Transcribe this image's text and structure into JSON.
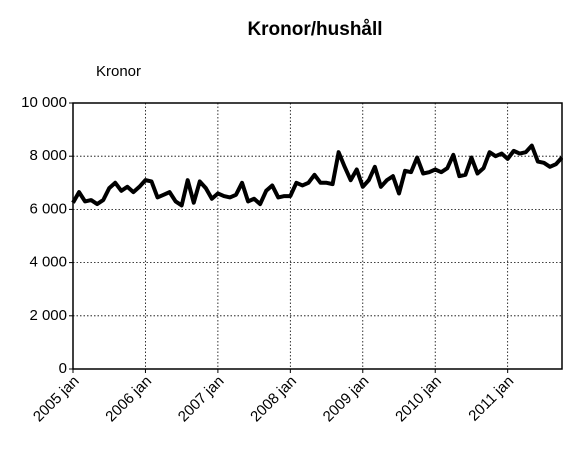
{
  "chart_data": {
    "type": "line",
    "title": "Kronor/hushåll",
    "y_label": "Kronor",
    "categories": [
      "2005 jan",
      null,
      null,
      null,
      null,
      null,
      null,
      null,
      null,
      null,
      null,
      null,
      "2006 jan",
      null,
      null,
      null,
      null,
      null,
      null,
      null,
      null,
      null,
      null,
      null,
      "2007 jan",
      null,
      null,
      null,
      null,
      null,
      null,
      null,
      null,
      null,
      null,
      null,
      "2008 jan",
      null,
      null,
      null,
      null,
      null,
      null,
      null,
      null,
      null,
      null,
      null,
      "2009 jan",
      null,
      null,
      null,
      null,
      null,
      null,
      null,
      null,
      null,
      null,
      null,
      "2010 jan",
      null,
      null,
      null,
      null,
      null,
      null,
      null,
      null,
      null,
      null,
      null,
      "2011 jan",
      null,
      null,
      null,
      null,
      null,
      null,
      null,
      null,
      null
    ],
    "series": [
      {
        "name": "Kronor/hushåll",
        "color": "#000000",
        "values": [
          6250,
          6650,
          6300,
          6350,
          6200,
          6350,
          6800,
          7000,
          6700,
          6850,
          6650,
          6850,
          7100,
          7050,
          6450,
          6550,
          6650,
          6300,
          6150,
          7100,
          6250,
          7050,
          6800,
          6400,
          6600,
          6500,
          6450,
          6550,
          7000,
          6300,
          6400,
          6200,
          6700,
          6900,
          6450,
          6500,
          6500,
          7000,
          6900,
          7000,
          7300,
          7000,
          7000,
          6950,
          8150,
          7600,
          7100,
          7500,
          6850,
          7100,
          7600,
          6850,
          7100,
          7250,
          6600,
          7450,
          7400,
          7950,
          7350,
          7400,
          7500,
          7400,
          7550,
          8050,
          7250,
          7300,
          7950,
          7350,
          7550,
          8150,
          8000,
          8100,
          7900,
          8200,
          8100,
          8150,
          8400,
          7800,
          7750,
          7600,
          7700,
          7950
        ]
      }
    ],
    "ylim": [
      0,
      10000
    ],
    "yticks": [
      0,
      {
        "value": 2000,
        "label": "2 000"
      },
      {
        "value": 4000,
        "label": "4 000"
      },
      {
        "value": 6000,
        "label": "6 000"
      },
      {
        "value": 8000,
        "label": "8 000"
      },
      {
        "value": 10000,
        "label": "10 000"
      }
    ],
    "grid": true
  }
}
